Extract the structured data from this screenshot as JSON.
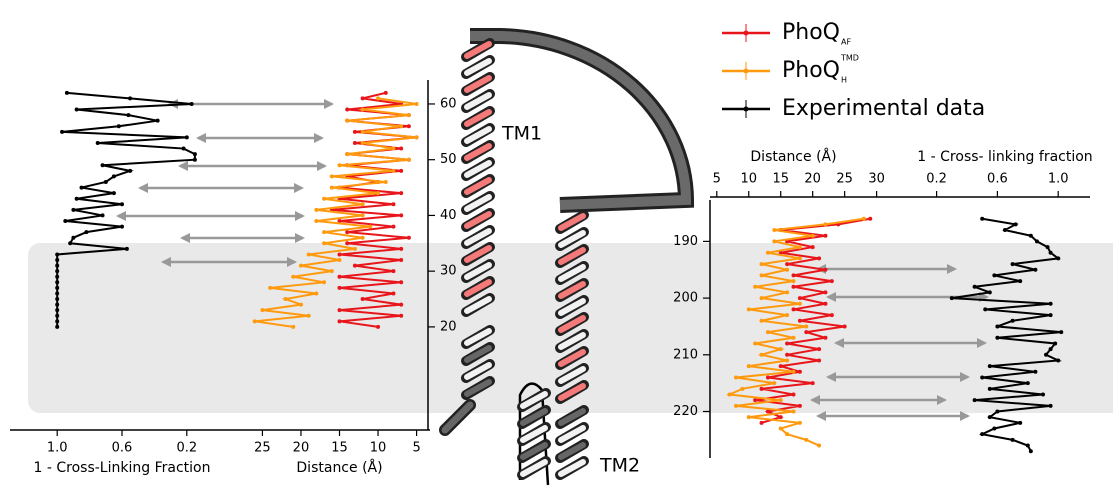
{
  "chart_data": [
    {
      "type": "line",
      "ylim": [
        1.5,
        64.3
      ],
      "yticks": [
        20,
        30,
        40,
        50,
        60
      ],
      "fraction_lim": [
        1.1,
        0.1
      ],
      "fraction_ticks": [
        {
          "value": 1,
          "label": "1.0"
        },
        0.6,
        0.2
      ],
      "distance_lim": [
        27,
        3
      ],
      "distance_ticks": [
        25,
        20,
        15,
        10,
        5
      ],
      "fraction_label": "1 - Cross-Linking Fraction",
      "distance_label": "Distance (Å)",
      "annotations": [
        "TM1",
        "TM2"
      ],
      "series": [
        {
          "name": "PhoQ",
          "subscript": "AF",
          "color": "#e8151b",
          "axis": "distance",
          "residues": [
            20,
            21,
            22,
            23,
            24,
            25,
            26,
            27,
            28,
            29,
            30,
            31,
            32,
            33,
            34,
            35,
            36,
            37,
            38,
            39,
            40,
            41,
            42,
            43,
            44,
            45,
            46,
            47,
            48,
            49,
            50,
            51,
            52,
            53,
            54,
            55,
            56,
            57,
            58,
            59,
            60,
            61,
            62
          ],
          "values": [
            10,
            15,
            7,
            15,
            7,
            12,
            8,
            15,
            7,
            15,
            8,
            13,
            7,
            15,
            7,
            14,
            6,
            14,
            8,
            15,
            7,
            16,
            8,
            15,
            7,
            15,
            10,
            14,
            7,
            14,
            6,
            14,
            7,
            13,
            5,
            13,
            6,
            14,
            6,
            14,
            7,
            12,
            9
          ]
        },
        {
          "name": "PhoQ",
          "superscript": "TMD",
          "subscript": "H",
          "color": "#ff9a0e",
          "axis": "distance",
          "residues": [
            20,
            21,
            22,
            23,
            24,
            25,
            26,
            27,
            28,
            29,
            30,
            31,
            32,
            33,
            34,
            35,
            36,
            37,
            38,
            39,
            40,
            41,
            42,
            43,
            44,
            45,
            46,
            47,
            48,
            49,
            50,
            51,
            52,
            53,
            54,
            55,
            56,
            57,
            58,
            59,
            60,
            61
          ],
          "values": [
            21,
            26,
            19,
            25,
            20,
            22,
            18,
            24,
            17,
            21,
            16,
            20,
            15,
            19,
            13,
            17,
            12,
            17,
            11,
            18,
            12,
            18,
            12,
            17,
            10,
            16,
            9,
            16,
            8,
            15,
            6,
            14,
            8,
            12,
            5,
            12,
            7,
            14,
            6,
            12,
            5,
            10
          ]
        },
        {
          "name": "Experimental data",
          "color": "#000000",
          "axis": "fraction",
          "residues": [
            20,
            21,
            22,
            23,
            24,
            25,
            26,
            27,
            28,
            29,
            30,
            31,
            32,
            33,
            34,
            35,
            36,
            37,
            38,
            39,
            40,
            41,
            42,
            43,
            44,
            45,
            46,
            47,
            48,
            49,
            50,
            51,
            52,
            53,
            54,
            55,
            56,
            57,
            58,
            59,
            60,
            61,
            62
          ],
          "values": [
            1,
            1,
            1,
            1,
            1,
            1,
            1,
            1,
            1,
            1,
            1,
            1,
            1,
            1,
            0.57,
            0.92,
            0.9,
            0.82,
            0.6,
            0.95,
            0.72,
            0.9,
            0.6,
            0.88,
            0.65,
            0.85,
            0.7,
            0.65,
            0.55,
            0.72,
            0.15,
            0.15,
            0.22,
            0.75,
            0.2,
            0.97,
            0.62,
            0.38,
            0.56,
            0.88,
            0.17,
            0.55,
            0.94
          ]
        }
      ]
    },
    {
      "type": "line",
      "ylim": [
        182.7,
        228.2
      ],
      "yticks": [
        190,
        200,
        210,
        220
      ],
      "fraction_lim": [
        0.15,
        1.15
      ],
      "fraction_ticks": [
        0.2,
        0.6,
        {
          "value": 1,
          "label": "1.0"
        }
      ],
      "distance_lim": [
        3,
        31
      ],
      "distance_ticks": [
        5,
        10,
        15,
        20,
        25,
        30
      ],
      "fraction_label": "1 - Cross- linking fraction",
      "distance_label": "Distance (Å)",
      "series": [
        {
          "color": "#e8151b",
          "axis": "distance",
          "residues": [
            186,
            187,
            188,
            189,
            190,
            191,
            192,
            193,
            194,
            195,
            196,
            197,
            198,
            199,
            200,
            201,
            202,
            203,
            204,
            205,
            206,
            207,
            208,
            209,
            210,
            211,
            212,
            213,
            214,
            215,
            216,
            217,
            218,
            219,
            220,
            221,
            222
          ],
          "values": [
            29,
            24,
            15,
            22,
            16,
            20,
            15,
            21,
            16,
            22,
            17,
            23,
            17,
            22,
            18,
            22,
            17,
            23,
            18,
            25,
            19,
            22,
            16,
            21,
            16,
            21,
            15,
            18,
            13,
            20,
            12,
            17,
            11,
            18,
            13,
            15,
            12
          ]
        },
        {
          "color": "#ff9a0e",
          "axis": "distance",
          "residues": [
            186,
            187,
            188,
            189,
            190,
            191,
            192,
            193,
            194,
            195,
            196,
            197,
            198,
            199,
            200,
            201,
            202,
            203,
            204,
            205,
            206,
            207,
            208,
            209,
            210,
            211,
            212,
            213,
            214,
            215,
            216,
            217,
            218,
            219,
            220,
            221,
            222,
            223,
            224,
            225,
            226
          ],
          "values": [
            28,
            22,
            14,
            20,
            14,
            18,
            13,
            18,
            12,
            16,
            12,
            17,
            11,
            16,
            12,
            18,
            10,
            16,
            12,
            19,
            13,
            17,
            11,
            15,
            12,
            16,
            10,
            17,
            8,
            14,
            9,
            7,
            15,
            8,
            17,
            10,
            18,
            15,
            16,
            19,
            21
          ]
        },
        {
          "color": "#000000",
          "axis": "fraction",
          "residues": [
            186,
            187,
            188,
            189,
            190,
            191,
            192,
            193,
            194,
            195,
            196,
            197,
            198,
            199,
            200,
            201,
            202,
            203,
            204,
            205,
            206,
            207,
            208,
            209,
            210,
            211,
            212,
            213,
            214,
            215,
            216,
            217,
            218,
            219,
            220,
            221,
            222,
            223,
            224,
            225,
            226,
            227
          ],
          "values": [
            0.5,
            0.72,
            0.65,
            0.82,
            0.86,
            0.93,
            0.95,
            1,
            0.7,
            0.85,
            0.58,
            0.75,
            0.45,
            0.55,
            0.3,
            0.95,
            0.52,
            0.95,
            0.7,
            0.6,
            1.02,
            0.6,
            0.98,
            0.95,
            0.92,
            1,
            0.55,
            0.85,
            0.5,
            0.8,
            0.55,
            0.9,
            0.45,
            0.95,
            0.6,
            0.55,
            0.75,
            0.58,
            0.5,
            0.7,
            0.8,
            0.82
          ]
        }
      ]
    }
  ]
}
